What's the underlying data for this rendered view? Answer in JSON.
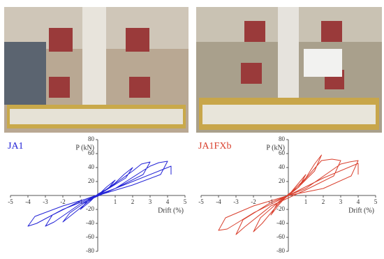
{
  "chart_data": [
    {
      "type": "line",
      "title": "JA1",
      "xlabel": "Drift (%)",
      "ylabel": "P (kN)",
      "xlim": [
        -5,
        5
      ],
      "ylim": [
        -80,
        80
      ],
      "xticks": [
        -5,
        -4,
        -3,
        -2,
        -1,
        1,
        2,
        3,
        4,
        5
      ],
      "yticks": [
        -80,
        -60,
        -40,
        -20,
        20,
        40,
        60,
        80
      ],
      "x": [
        0,
        0.5,
        1,
        0.6,
        0,
        -0.5,
        -1,
        -0.6,
        0,
        1,
        1.5,
        2,
        1.6,
        0.5,
        -0.5,
        -1.5,
        -2,
        -1.6,
        -0.5,
        0.5,
        2,
        2.5,
        3,
        2.6,
        1,
        -1,
        -2.5,
        -3,
        -2.6,
        -1,
        1,
        3,
        3.5,
        4,
        3.6,
        2,
        0,
        -2,
        -3.5,
        -4,
        -3.6,
        -2,
        0,
        2,
        4.2,
        4.2
      ],
      "series": [
        {
          "name": "JA1",
          "color": "#2323d6",
          "values": [
            0,
            12,
            22,
            10,
            2,
            -10,
            -20,
            -8,
            0,
            18,
            30,
            40,
            25,
            8,
            -8,
            -28,
            -38,
            -25,
            -6,
            8,
            35,
            45,
            48,
            30,
            10,
            -12,
            -38,
            -44,
            -28,
            -8,
            10,
            42,
            47,
            49,
            30,
            15,
            0,
            -20,
            -40,
            -44,
            -30,
            -15,
            0,
            20,
            42,
            30
          ]
        }
      ]
    },
    {
      "type": "line",
      "title": "JA1FXb",
      "xlabel": "Drift (%)",
      "ylabel": "P (kN)",
      "xlim": [
        -5,
        5
      ],
      "ylim": [
        -80,
        80
      ],
      "xticks": [
        -5,
        -4,
        -3,
        -2,
        -1,
        1,
        2,
        3,
        4,
        5
      ],
      "yticks": [
        -80,
        -60,
        -40,
        -20,
        20,
        40,
        60,
        80
      ],
      "x": [
        0,
        0.5,
        1,
        0.6,
        0,
        -0.5,
        -1,
        -0.6,
        0,
        1,
        1.5,
        1.9,
        1.5,
        0.5,
        -0.5,
        -1.5,
        -2,
        -1.6,
        -0.5,
        0.5,
        1.9,
        2.5,
        3,
        2.6,
        1,
        -1,
        -2.5,
        -3,
        -2.6,
        -1,
        1,
        3,
        3.5,
        4,
        3.6,
        2,
        0,
        -2,
        -3.5,
        -4,
        -3.6,
        -2,
        0,
        2,
        4,
        4
      ],
      "series": [
        {
          "name": "JA1FXb",
          "color": "#d9402e",
          "values": [
            0,
            15,
            30,
            12,
            2,
            -12,
            -28,
            -10,
            0,
            25,
            45,
            58,
            35,
            10,
            -10,
            -40,
            -52,
            -32,
            -8,
            10,
            50,
            52,
            50,
            28,
            8,
            -15,
            -45,
            -56,
            -35,
            -10,
            10,
            45,
            48,
            50,
            28,
            10,
            0,
            -25,
            -48,
            -50,
            -32,
            -15,
            0,
            25,
            46,
            30
          ]
        }
      ]
    }
  ]
}
